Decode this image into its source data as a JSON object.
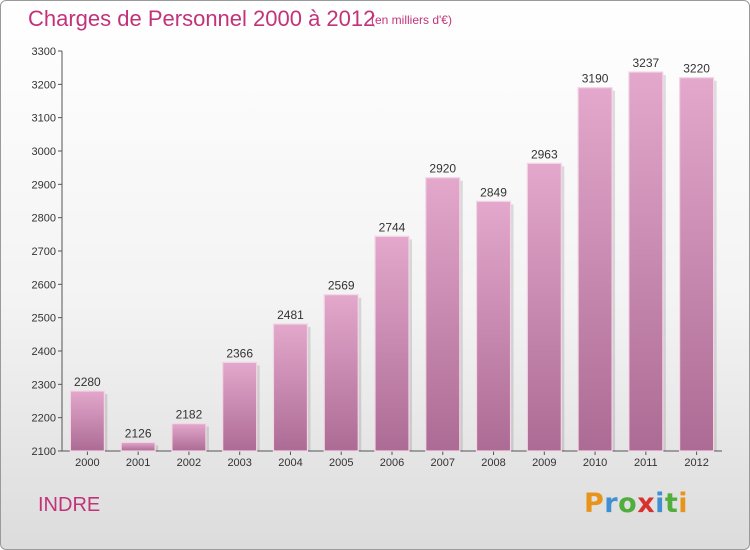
{
  "header": {
    "title": "Charges de Personnel 2000 à 2012",
    "unit": "(en milliers d'€)"
  },
  "footer": {
    "region": "INDRE",
    "logo": [
      "P",
      "r",
      "o",
      "x",
      "i",
      "t",
      "i"
    ]
  },
  "colors": {
    "accent": "#c2337a",
    "bar_top": "#e4a8cc",
    "bar_bottom": "#ac6b94",
    "logo": [
      "#e8941a",
      "#3f8fd2",
      "#4fae3c",
      "#d8312e",
      "#3f8fd2",
      "#4fae3c",
      "#e8941a"
    ]
  },
  "chart_data": {
    "type": "bar",
    "categories": [
      "2000",
      "2001",
      "2002",
      "2003",
      "2004",
      "2005",
      "2006",
      "2007",
      "2008",
      "2009",
      "2010",
      "2011",
      "2012"
    ],
    "values": [
      2280,
      2126,
      2182,
      2366,
      2481,
      2569,
      2744,
      2920,
      2849,
      2963,
      3190,
      3237,
      3220
    ],
    "ylim": [
      2100,
      3300
    ],
    "yticks": [
      2100,
      2200,
      2300,
      2400,
      2500,
      2600,
      2700,
      2800,
      2900,
      3000,
      3100,
      3200,
      3300
    ],
    "grid": false,
    "data_labels": true
  }
}
